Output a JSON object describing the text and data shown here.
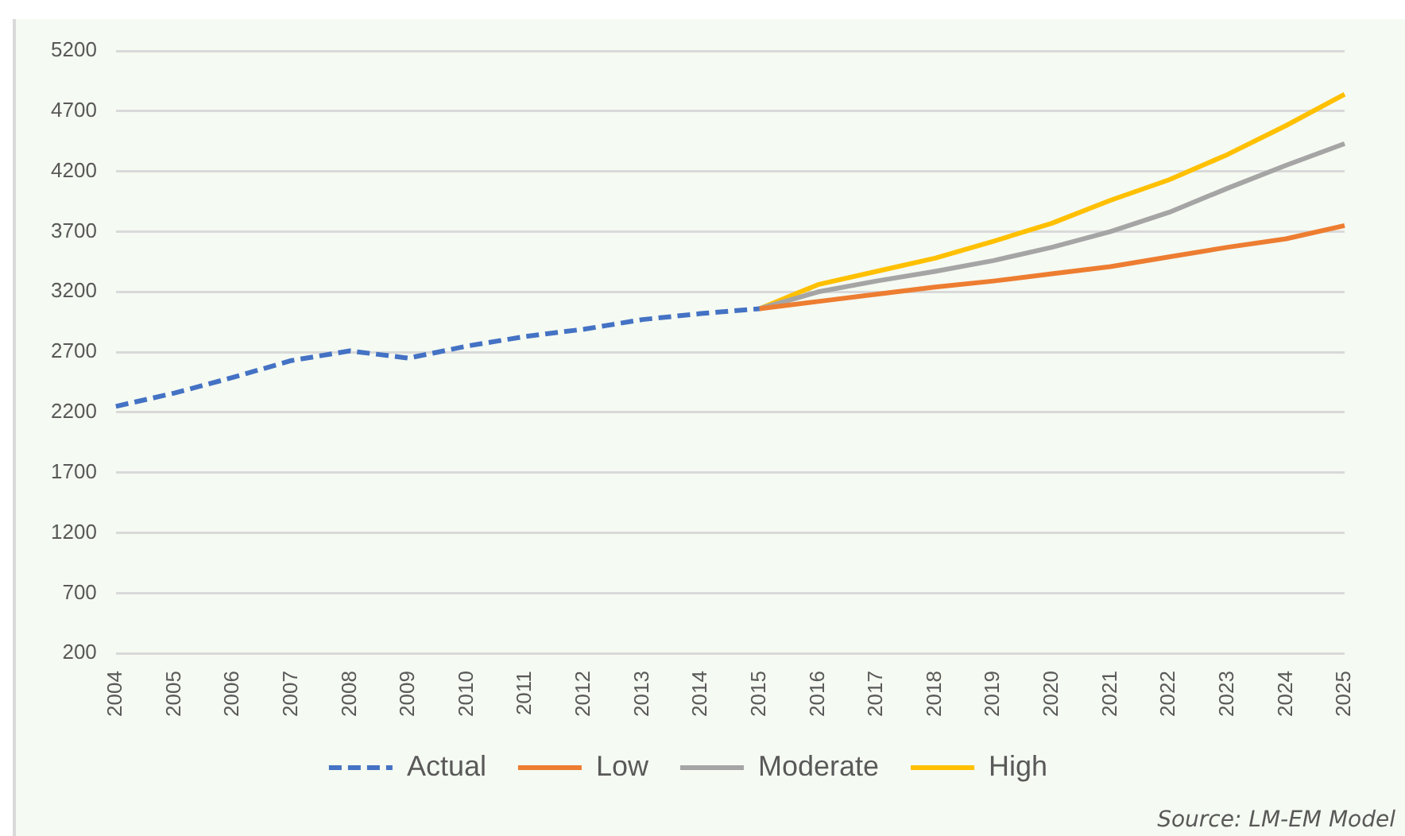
{
  "chart_data": {
    "type": "line",
    "categories": [
      "2004",
      "2005",
      "2006",
      "2007",
      "2008",
      "2009",
      "2010",
      "2011",
      "2012",
      "2013",
      "2014",
      "2015",
      "2016",
      "2017",
      "2018",
      "2019",
      "2020",
      "2021",
      "2022",
      "2023",
      "2024",
      "2025"
    ],
    "series": [
      {
        "name": "Actual",
        "color": "#4472c4",
        "line_style": "dashed",
        "values": [
          2250,
          2360,
          2490,
          2630,
          2710,
          2650,
          2750,
          2830,
          2890,
          2970,
          3020,
          3060,
          null,
          null,
          null,
          null,
          null,
          null,
          null,
          null,
          null,
          null
        ]
      },
      {
        "name": "Low",
        "color": "#ed7d31",
        "line_style": "solid",
        "values": [
          null,
          null,
          null,
          null,
          null,
          null,
          null,
          null,
          null,
          null,
          null,
          3060,
          3120,
          3180,
          3240,
          3290,
          3350,
          3410,
          3490,
          3570,
          3640,
          3750
        ]
      },
      {
        "name": "Moderate",
        "color": "#a5a5a5",
        "line_style": "solid",
        "values": [
          null,
          null,
          null,
          null,
          null,
          null,
          null,
          null,
          null,
          null,
          null,
          3060,
          3200,
          3290,
          3370,
          3460,
          3570,
          3700,
          3860,
          4060,
          4250,
          4430
        ]
      },
      {
        "name": "High",
        "color": "#ffc000",
        "line_style": "solid",
        "values": [
          null,
          null,
          null,
          null,
          null,
          null,
          null,
          null,
          null,
          null,
          null,
          3060,
          3260,
          3370,
          3480,
          3620,
          3770,
          3960,
          4130,
          4340,
          4580,
          4840
        ]
      }
    ],
    "ylim": [
      200,
      5200
    ],
    "yticks": [
      200,
      700,
      1200,
      1700,
      2200,
      2700,
      3200,
      3700,
      4200,
      4700,
      5200
    ],
    "grid": "y",
    "legend": "bottom",
    "marker": "none",
    "annotations": [
      "Source: LM-EM Model"
    ]
  }
}
